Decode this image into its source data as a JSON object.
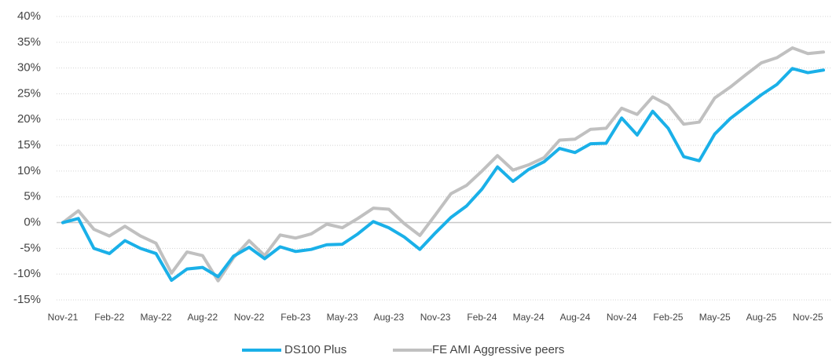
{
  "chart_data": {
    "type": "line",
    "categories": [
      "Nov-21",
      null,
      null,
      "Feb-22",
      null,
      null,
      "May-22",
      null,
      null,
      "Aug-22",
      null,
      null,
      "Nov-22",
      null,
      null,
      "Feb-23",
      null,
      null,
      "May-23",
      null,
      null,
      "Aug-23",
      null,
      null,
      "Nov-23",
      null,
      null,
      "Feb-24",
      null,
      null,
      "May-24",
      null,
      null,
      "Aug-24",
      null,
      null,
      "Nov-24",
      null,
      null,
      "Feb-25",
      null,
      null,
      "May-25",
      null,
      null,
      "Aug-25",
      null,
      null,
      "Nov-25",
      null
    ],
    "series": [
      {
        "name": "DS100 Plus",
        "color": "#1ab0e8",
        "values": [
          0,
          0.8,
          -5,
          -6,
          -3.5,
          -5,
          -6,
          -11.2,
          -9,
          -8.7,
          -10.5,
          -6.5,
          -4.8,
          -7,
          -4.7,
          -5.6,
          -5.2,
          -4.3,
          -4.2,
          -2.2,
          0.2,
          -1,
          -2.8,
          -5.2,
          -2,
          1,
          3.2,
          6.5,
          10.8,
          8,
          10.3,
          11.8,
          14.4,
          13.6,
          15.3,
          15.4,
          20.3,
          17,
          21.6,
          18.3,
          12.8,
          12,
          17.2,
          20.2,
          22.5,
          24.8,
          26.8,
          29.9,
          29.1,
          29.6
        ]
      },
      {
        "name": "FE AMI Aggressive peers",
        "color": "#c0c0c0",
        "values": [
          0,
          2.3,
          -1.3,
          -2.6,
          -0.7,
          -2.6,
          -4,
          -9.8,
          -5.7,
          -6.4,
          -11.3,
          -6.8,
          -3.5,
          -6.4,
          -2.4,
          -3,
          -2.2,
          -0.3,
          -1,
          0.8,
          2.8,
          2.6,
          -0.2,
          -2.5,
          1.5,
          5.6,
          7.2,
          10,
          13,
          10.2,
          11.2,
          12.6,
          16,
          16.2,
          18.1,
          18.3,
          22.2,
          21,
          24.4,
          22.8,
          19.1,
          19.5,
          24.2,
          26.3,
          28.7,
          31,
          32,
          33.9,
          32.8,
          33.1
        ]
      }
    ],
    "ylim": [
      -15,
      40
    ],
    "yticks": [
      {
        "value": -15,
        "label": "-15%"
      },
      {
        "value": -10,
        "label": "-10%"
      },
      {
        "value": -5,
        "label": "-5%"
      },
      {
        "value": 0,
        "label": "0%"
      },
      {
        "value": 5,
        "label": "5%"
      },
      {
        "value": 10,
        "label": "10%"
      },
      {
        "value": 15,
        "label": "15%"
      },
      {
        "value": 20,
        "label": "20%"
      },
      {
        "value": 25,
        "label": "25%"
      },
      {
        "value": 30,
        "label": "30%"
      },
      {
        "value": 35,
        "label": "35%"
      },
      {
        "value": 40,
        "label": "40%"
      }
    ],
    "grid": true,
    "legend": "bottom"
  }
}
